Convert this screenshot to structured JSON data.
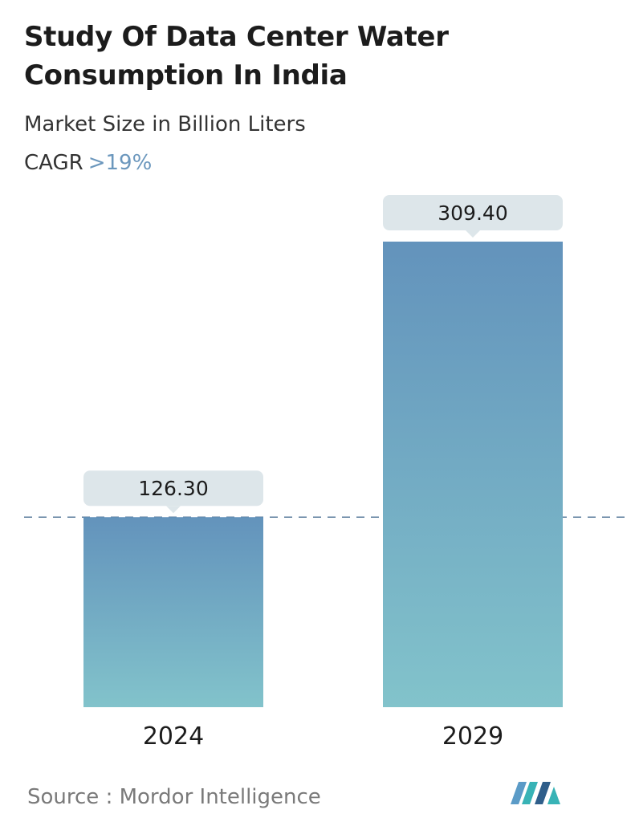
{
  "title": "Study Of Data Center Water Consumption In India",
  "subtitle": "Market Size in Billion Liters",
  "cagr": {
    "label": "CAGR",
    "value": ">19%"
  },
  "source": "Source :  Mordor Intelligence",
  "logo": {
    "icon": "mordor-intelligence-logo",
    "colors": [
      "#5b9bc7",
      "#2f5e8a",
      "#38b3b6"
    ]
  },
  "colors": {
    "bar_top": "#6393bc",
    "bar_bottom": "#82c3cb",
    "label_bg": "#dde6ea",
    "dashed_line": "#5b7d9c"
  },
  "chart_data": {
    "type": "bar",
    "categories": [
      "2024",
      "2029"
    ],
    "values": [
      126.3,
      309.4
    ],
    "value_labels": [
      "126.30",
      "309.40"
    ],
    "title": "Study Of Data Center Water Consumption In India",
    "ylabel": "",
    "xlabel": "",
    "ylim": [
      0,
      309.4
    ],
    "reference_line": {
      "value": 126.3,
      "style": "dashed"
    },
    "grid": false,
    "legend": "none"
  }
}
